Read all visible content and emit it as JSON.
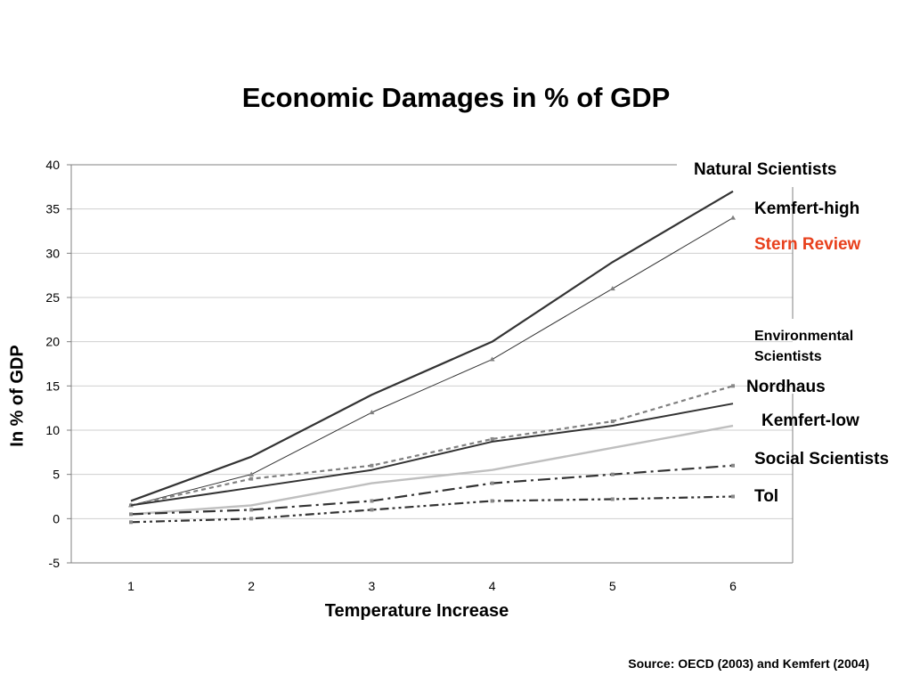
{
  "chart_data": {
    "type": "line",
    "title": "Economic Damages in % of GDP",
    "xlabel": "Temperature Increase",
    "ylabel": "In % of GDP",
    "x": [
      1,
      2,
      3,
      4,
      5,
      6
    ],
    "ylim": [
      -5,
      40
    ],
    "yticks": [
      -5,
      0,
      5,
      10,
      15,
      20,
      25,
      30,
      35,
      40
    ],
    "grid": true,
    "series": [
      {
        "name": "Natural Scientists",
        "values": [
          2,
          7,
          14,
          20,
          29,
          37
        ],
        "color": "#333333",
        "dash": "",
        "width": 2.2,
        "marker": false
      },
      {
        "name": "Kemfert-high",
        "values": [
          1.5,
          5,
          12,
          18,
          26,
          34
        ],
        "color": "#333333",
        "dash": "",
        "width": 1,
        "marker": "triangle"
      },
      {
        "name": "Nordhaus",
        "values": [
          1.5,
          4.5,
          6,
          9,
          11,
          15
        ],
        "color": "#808080",
        "dash": "5,4",
        "width": 2.2,
        "marker": "square"
      },
      {
        "name": "Kemfert-low",
        "values": [
          1.5,
          3.5,
          5.5,
          8.7,
          10.5,
          13
        ],
        "color": "#333333",
        "dash": "",
        "width": 2,
        "marker": false
      },
      {
        "name": "Environmental Scientists",
        "values": [
          0.5,
          1.5,
          4,
          5.5,
          8,
          10.5
        ],
        "color": "#bfbfbf",
        "dash": "",
        "width": 2.4,
        "marker": false
      },
      {
        "name": "Social Scientists",
        "values": [
          0.5,
          1,
          2,
          4,
          5,
          6
        ],
        "color": "#333333",
        "dash": "14,5,3,5",
        "width": 2.2,
        "marker": "square"
      },
      {
        "name": "Tol",
        "values": [
          -0.4,
          0,
          1,
          2,
          2.2,
          2.5
        ],
        "color": "#333333",
        "dash": "10,4,3,4,3,4",
        "width": 2.2,
        "marker": "square"
      }
    ],
    "annotations": {
      "natural_scientists": "Natural Scientists",
      "kemfert_high": "Kemfert-high",
      "stern_review": "Stern Review",
      "stern_review_color": "#e8401c",
      "env_line1": "Environmental",
      "env_line2": "Scientists",
      "nordhaus": "Nordhaus",
      "kemfert_low": "Kemfert-low",
      "social_scientists": "Social Scientists",
      "tol": "Tol"
    },
    "source": "Source: OECD (2003)  and Kemfert (2004)"
  }
}
